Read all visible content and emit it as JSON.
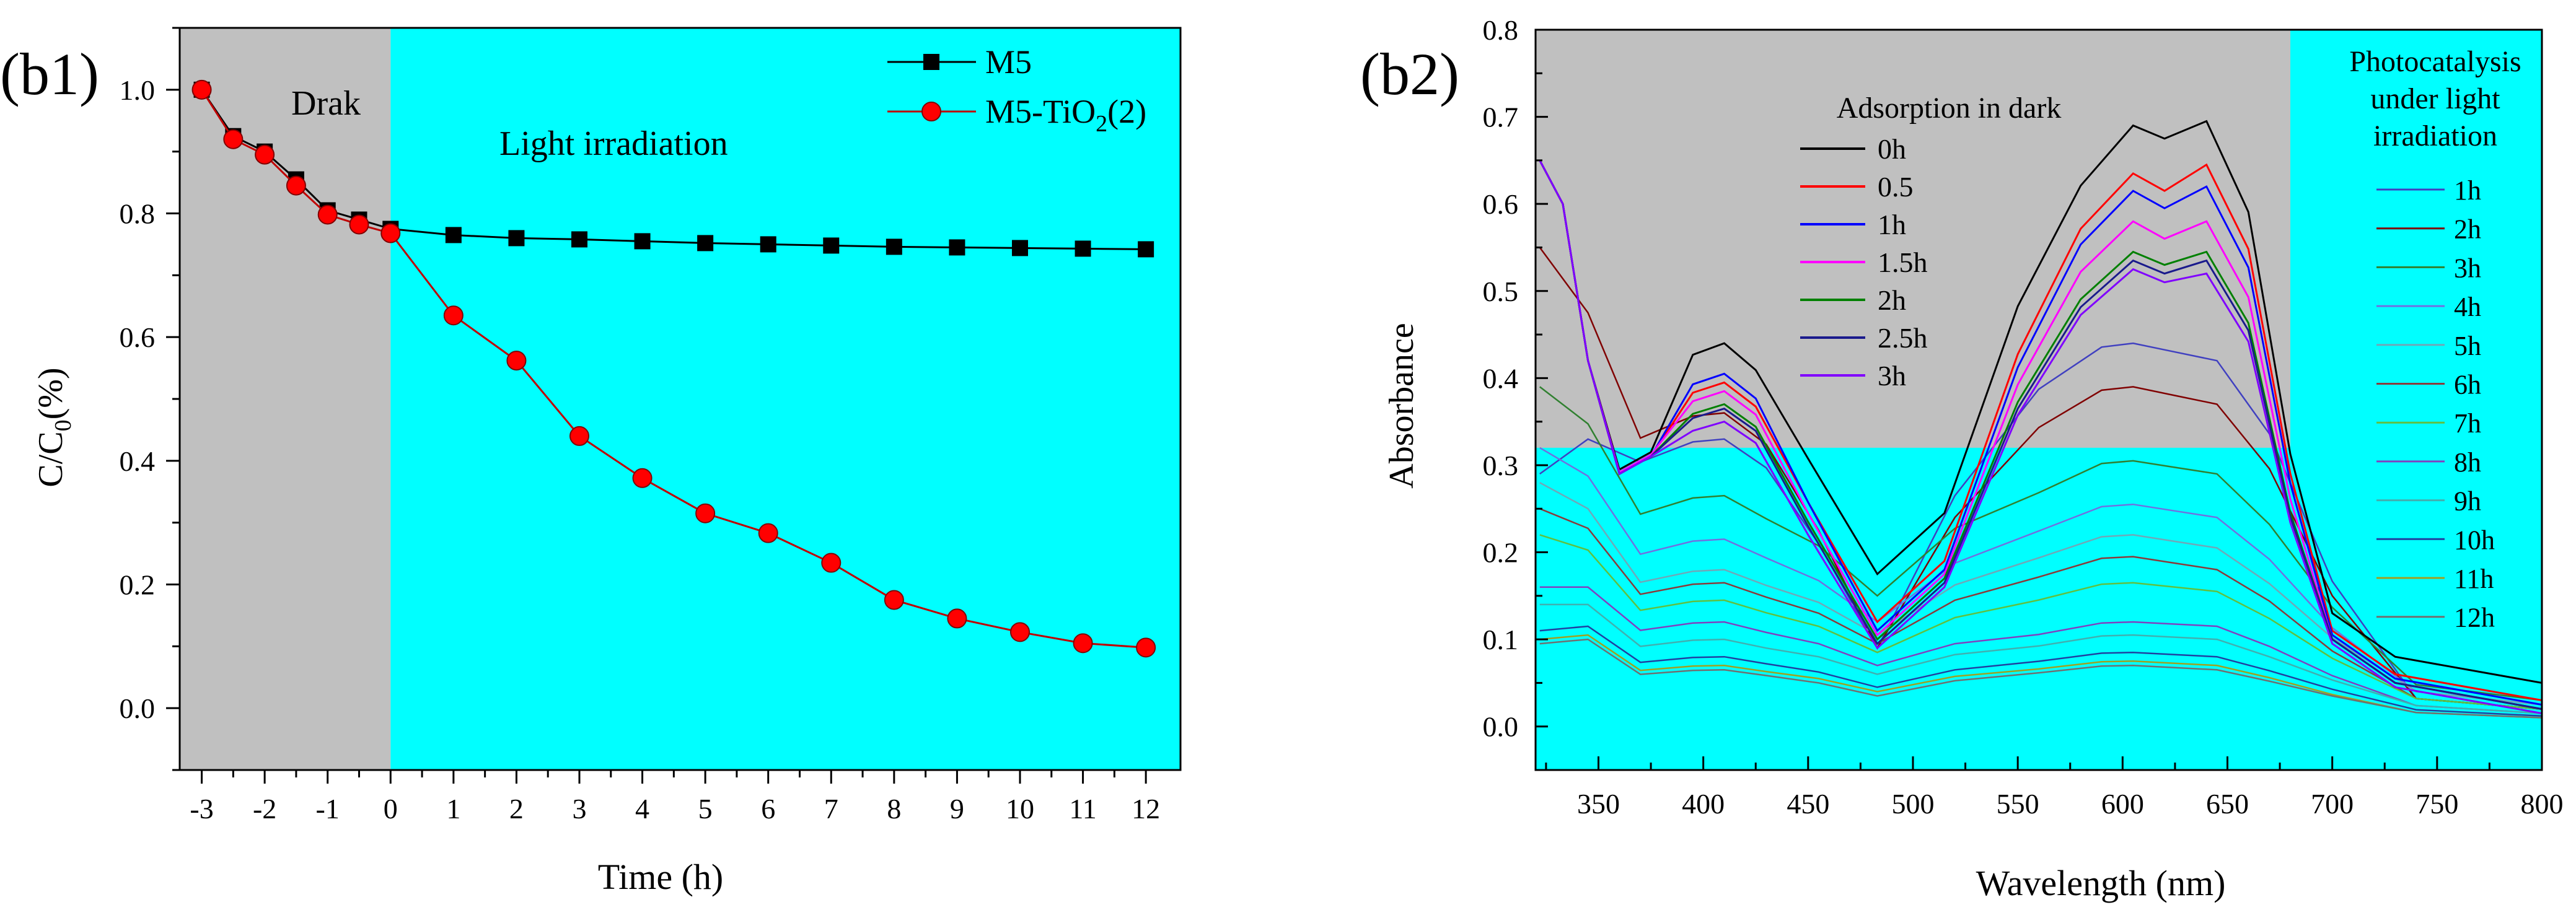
{
  "chart_data": [
    {
      "type": "line",
      "panel_label": "(b1)",
      "xlabel": "Time (h)",
      "ylabel_main": "C/C",
      "ylabel_sub": "0",
      "ylabel_tail": "(%)",
      "xlim": [
        -3.35,
        12.55
      ],
      "ylim": [
        -0.1,
        1.1
      ],
      "x_ticks": [
        -3,
        -2.5,
        -2,
        -1.5,
        -1,
        -0.5,
        0,
        0.5,
        1,
        1.5,
        2,
        2.5,
        3,
        3.5,
        4,
        4.5,
        5,
        5.5,
        6,
        6.5,
        7,
        7.5,
        8,
        8.5,
        9,
        9.5,
        10,
        10.5,
        11,
        11.5,
        12
      ],
      "x_tick_labels": [
        "-3",
        "-2",
        "-1",
        "0",
        "1",
        "2",
        "3",
        "4",
        "5",
        "6",
        "7",
        "8",
        "9",
        "10",
        "11",
        "12"
      ],
      "y_ticks": [
        -0.1,
        0,
        0.1,
        0.2,
        0.3,
        0.4,
        0.5,
        0.6,
        0.7,
        0.8,
        0.9,
        1.0,
        1.1
      ],
      "y_tick_labels": [
        "0.0",
        "0.2",
        "0.4",
        "0.6",
        "0.8",
        "1.0"
      ],
      "region_dark_label": "Drak",
      "region_light_label": "Light irradiation",
      "region_split_x": 0,
      "region_colors": {
        "dark": "#c0c0c0",
        "light": "#00ffff"
      },
      "legend_position": "top-right",
      "series": [
        {
          "name": "M5",
          "name_sub": "",
          "name_tail": "",
          "marker": "square",
          "color": "#000000",
          "x": [
            -3,
            -2.5,
            -2,
            -1.5,
            -1,
            -0.5,
            0,
            1,
            2,
            3,
            4,
            5,
            6,
            7,
            8,
            9,
            10,
            11,
            12
          ],
          "values": [
            1.0,
            0.925,
            0.9,
            0.855,
            0.805,
            0.79,
            0.775,
            0.765,
            0.76,
            0.758,
            0.755,
            0.752,
            0.75,
            0.748,
            0.746,
            0.745,
            0.744,
            0.743,
            0.742
          ]
        },
        {
          "name": "M5-TiO",
          "name_sub": "2",
          "name_tail": "(2)",
          "marker": "circle",
          "color": "#ff0000",
          "x": [
            -3,
            -2.5,
            -2,
            -1.5,
            -1,
            -0.5,
            0,
            1,
            2,
            3,
            4,
            5,
            6,
            7,
            8,
            9,
            10,
            11,
            12
          ],
          "values": [
            1.0,
            0.92,
            0.895,
            0.845,
            0.798,
            0.782,
            0.768,
            0.635,
            0.562,
            0.44,
            0.372,
            0.315,
            0.283,
            0.235,
            0.175,
            0.145,
            0.123,
            0.105,
            0.098
          ]
        }
      ]
    },
    {
      "type": "line",
      "panel_label": "(b2)",
      "xlabel": "Wavelength (nm)",
      "ylabel": "Absorbance",
      "xlim": [
        320,
        800
      ],
      "ylim": [
        -0.05,
        0.8
      ],
      "x_ticks": [
        325,
        350,
        375,
        400,
        425,
        450,
        475,
        500,
        525,
        550,
        575,
        600,
        625,
        650,
        675,
        700,
        725,
        750,
        775,
        800
      ],
      "x_tick_labels": [
        "350",
        "400",
        "450",
        "500",
        "550",
        "600",
        "650",
        "700",
        "750",
        "800"
      ],
      "y_ticks": [
        -0.05,
        0,
        0.05,
        0.1,
        0.15,
        0.2,
        0.25,
        0.3,
        0.35,
        0.4,
        0.45,
        0.5,
        0.55,
        0.6,
        0.65,
        0.7,
        0.75,
        0.8
      ],
      "y_tick_labels": [
        "0.0",
        "0.1",
        "0.2",
        "0.3",
        "0.4",
        "0.5",
        "0.6",
        "0.7",
        "0.8"
      ],
      "region_colors": {
        "dark": "#c0c0c0",
        "light": "#00ffff"
      },
      "region_dark_bounds": {
        "x_max": 680,
        "y_min": 0.32
      },
      "dark_legend_title": "Adsorption in dark",
      "light_legend_title": [
        "Photocatalysis",
        "under light",
        "irradiation"
      ],
      "dark_series": [
        {
          "name": "0h",
          "color": "#000000",
          "p360": 0.295,
          "p410": 0.44,
          "p483": 0.175,
          "p605": 0.69,
          "p620": 0.675,
          "p640": 0.695,
          "end": 0.05
        },
        {
          "name": "0.5",
          "color": "#ff0000",
          "p360": 0.29,
          "p410": 0.395,
          "p483": 0.12,
          "p605": 0.635,
          "p620": 0.615,
          "p640": 0.645,
          "end": 0.03
        },
        {
          "name": "1h",
          "color": "#0000ff",
          "p360": 0.29,
          "p410": 0.405,
          "p483": 0.11,
          "p605": 0.615,
          "p620": 0.595,
          "p640": 0.62,
          "end": 0.025
        },
        {
          "name": "1.5h",
          "color": "#ff00ff",
          "p360": 0.292,
          "p410": 0.385,
          "p483": 0.105,
          "p605": 0.58,
          "p620": 0.56,
          "p640": 0.58,
          "end": 0.02
        },
        {
          "name": "2h",
          "color": "#008000",
          "p360": 0.29,
          "p410": 0.37,
          "p483": 0.1,
          "p605": 0.545,
          "p620": 0.53,
          "p640": 0.545,
          "end": 0.02
        },
        {
          "name": "2.5h",
          "color": "#1a1a8c",
          "p360": 0.29,
          "p410": 0.365,
          "p483": 0.095,
          "p605": 0.535,
          "p620": 0.52,
          "p640": 0.535,
          "end": 0.02
        },
        {
          "name": "3h",
          "color": "#8000ff",
          "p360": 0.29,
          "p410": 0.35,
          "p483": 0.09,
          "p605": 0.525,
          "p620": 0.51,
          "p640": 0.52,
          "end": 0.015
        }
      ],
      "light_series": [
        {
          "name": "1h",
          "color": "#4040c0",
          "start": 0.29,
          "p410": 0.33,
          "p483": 0.09,
          "p605": 0.44,
          "p640": 0.42,
          "end": 0.02
        },
        {
          "name": "2h",
          "color": "#800000",
          "start": 0.55,
          "p410": 0.36,
          "p483": 0.09,
          "p605": 0.39,
          "p640": 0.37,
          "end": 0.02
        },
        {
          "name": "3h",
          "color": "#308030",
          "start": 0.39,
          "p410": 0.265,
          "p483": 0.15,
          "p605": 0.305,
          "p640": 0.29,
          "end": 0.03
        },
        {
          "name": "4h",
          "color": "#7070e0",
          "start": 0.32,
          "p410": 0.215,
          "p483": 0.12,
          "p605": 0.255,
          "p640": 0.24,
          "end": 0.025
        },
        {
          "name": "5h",
          "color": "#6fa8b8",
          "start": 0.28,
          "p410": 0.18,
          "p483": 0.105,
          "p605": 0.22,
          "p640": 0.205,
          "end": 0.025
        },
        {
          "name": "6h",
          "color": "#8b3a3a",
          "start": 0.25,
          "p410": 0.165,
          "p483": 0.095,
          "p605": 0.195,
          "p640": 0.18,
          "end": 0.02
        },
        {
          "name": "7h",
          "color": "#60c040",
          "start": 0.22,
          "p410": 0.145,
          "p483": 0.085,
          "p605": 0.165,
          "p640": 0.155,
          "end": 0.02
        },
        {
          "name": "8h",
          "color": "#8040c0",
          "start": 0.16,
          "p410": 0.12,
          "p483": 0.07,
          "p605": 0.12,
          "p640": 0.115,
          "end": 0.015
        },
        {
          "name": "9h",
          "color": "#40b0b0",
          "start": 0.14,
          "p410": 0.1,
          "p483": 0.06,
          "p605": 0.105,
          "p640": 0.1,
          "end": 0.015
        },
        {
          "name": "10h",
          "color": "#2040a0",
          "start": 0.11,
          "p410": 0.08,
          "p483": 0.045,
          "p605": 0.085,
          "p640": 0.08,
          "end": 0.012
        },
        {
          "name": "11h",
          "color": "#a0a020",
          "start": 0.1,
          "p410": 0.07,
          "p483": 0.04,
          "p605": 0.075,
          "p640": 0.07,
          "end": 0.01
        },
        {
          "name": "12h",
          "color": "#707070",
          "start": 0.095,
          "p410": 0.065,
          "p483": 0.035,
          "p605": 0.07,
          "p640": 0.065,
          "end": 0.01
        }
      ]
    }
  ]
}
